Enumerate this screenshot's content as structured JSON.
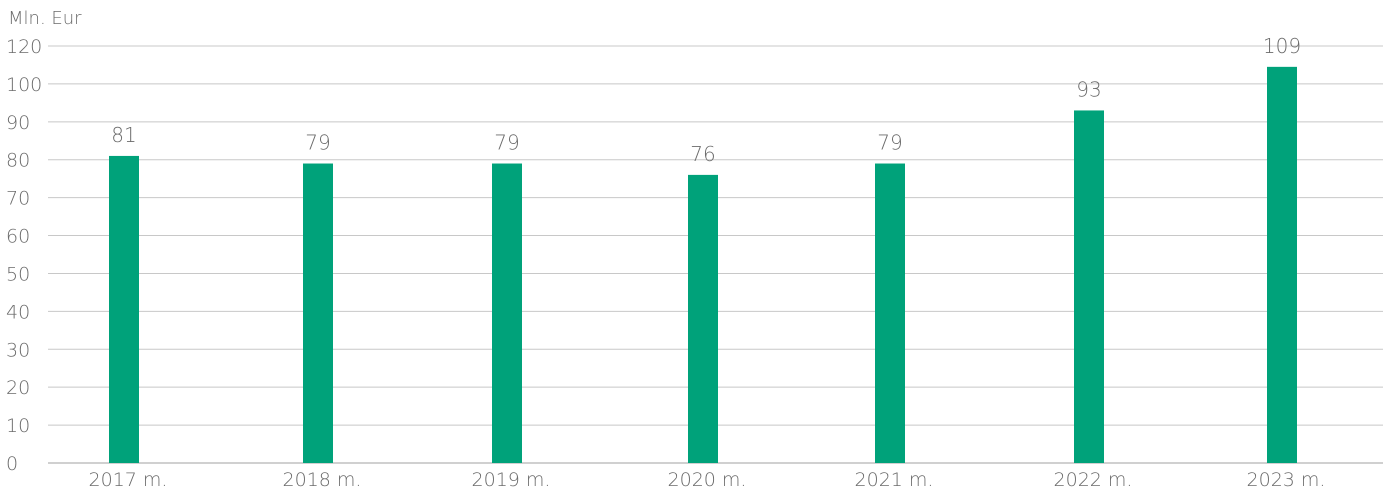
{
  "chart_data": {
    "type": "bar",
    "ylabel": "Mln. Eur",
    "xlabel": "",
    "title": "",
    "categories": [
      "2017 m.",
      "2018 m.",
      "2019 m.",
      "2020 m.",
      "2021 m.",
      "2022 m.",
      "2023 m."
    ],
    "values": [
      81,
      79,
      79,
      76,
      79,
      93,
      109
    ],
    "data_labels": [
      "81",
      "79",
      "79",
      "76",
      "79",
      "93",
      "109"
    ],
    "ylim": [
      0,
      120
    ],
    "yticks": [
      0,
      10,
      20,
      30,
      40,
      50,
      60,
      70,
      80,
      90,
      100,
      120
    ],
    "ytick_labels": [
      "0",
      "10",
      "20",
      "30",
      "40",
      "50",
      "60",
      "70",
      "80",
      "90",
      "100",
      "120"
    ],
    "grid": true,
    "legend": "none",
    "bar_color": "#00a27a",
    "grid_color": "#c8c8c8",
    "text_color": "#6b6b6b"
  }
}
